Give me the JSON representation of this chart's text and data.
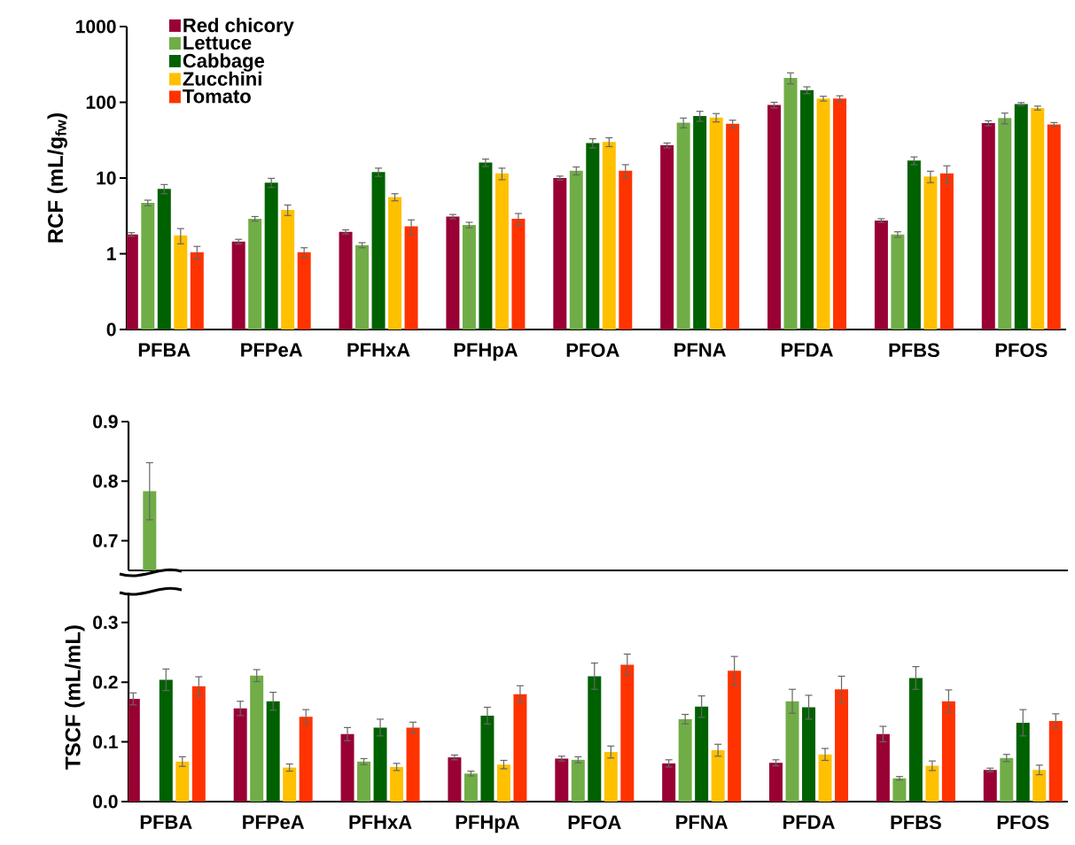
{
  "chart_data": [
    {
      "type": "bar",
      "categories": [
        "PFBA",
        "PFPeA",
        "PFHxA",
        "PFHpA",
        "PFOA",
        "PFNA",
        "PFDA",
        "PFBS",
        "PFOS"
      ],
      "ylabel": "RCF (mL/g$_{fw}$)",
      "log": true,
      "ylim": [
        0.1,
        1000
      ],
      "yticks": [
        {
          "value": 0.1,
          "label": "0"
        },
        1,
        10,
        100,
        1000
      ],
      "legend": "top left",
      "series": [
        {
          "name": "Red chicory",
          "color": "#990033",
          "values": [
            1.8,
            1.45,
            1.95,
            3.1,
            10,
            27,
            92,
            2.75,
            53
          ],
          "errors": [
            0.1,
            0.1,
            0.12,
            0.2,
            0.6,
            2,
            8,
            0.15,
            4
          ]
        },
        {
          "name": "Lettuce",
          "color": "#70ad47",
          "values": [
            4.7,
            2.9,
            1.3,
            2.4,
            12.5,
            54,
            210,
            1.8,
            62
          ],
          "errors": [
            0.4,
            0.2,
            0.1,
            0.2,
            1.5,
            8,
            35,
            0.15,
            10
          ]
        },
        {
          "name": "Cabbage",
          "color": "#006100",
          "values": [
            7.2,
            8.7,
            12,
            16,
            29,
            66,
            145,
            17,
            95
          ],
          "errors": [
            1.0,
            1.2,
            1.5,
            1.8,
            4,
            10,
            15,
            2,
            4
          ]
        },
        {
          "name": "Zucchini",
          "color": "#ffc000",
          "values": [
            1.75,
            3.8,
            5.6,
            11.5,
            30,
            63,
            112,
            10.5,
            84
          ],
          "errors": [
            0.4,
            0.6,
            0.6,
            2,
            4,
            8,
            8,
            1.8,
            5
          ]
        },
        {
          "name": "Tomato",
          "color": "#ff3300",
          "values": [
            1.05,
            1.05,
            2.3,
            2.9,
            12.5,
            52,
            112,
            11.5,
            51
          ],
          "errors": [
            0.2,
            0.15,
            0.5,
            0.5,
            2.5,
            6,
            10,
            3,
            3
          ]
        }
      ]
    },
    {
      "type": "bar",
      "categories": [
        null,
        null,
        null,
        null,
        null,
        null,
        null,
        null,
        null
      ],
      "ylim": [
        0.65,
        0.9
      ],
      "yticks": [
        0.7,
        0.8,
        0.9
      ],
      "tick_labels": "y",
      "series": [
        {
          "color": "#990033",
          "values": [
            null,
            null,
            null,
            null,
            null,
            null,
            null,
            null,
            null
          ]
        },
        {
          "color": "#70ad47",
          "values": [
            0.783,
            null,
            null,
            null,
            null,
            null,
            null,
            null,
            null
          ],
          "errors": [
            0.048,
            null,
            null,
            null,
            null,
            null,
            null,
            null,
            null
          ]
        },
        {
          "color": "#006100",
          "values": [
            null,
            null,
            null,
            null,
            null,
            null,
            null,
            null,
            null
          ]
        },
        {
          "color": "#ffc000",
          "values": [
            null,
            null,
            null,
            null,
            null,
            null,
            null,
            null,
            null
          ]
        },
        {
          "color": "#ff3300",
          "values": [
            null,
            null,
            null,
            null,
            null,
            null,
            null,
            null,
            null
          ]
        }
      ]
    },
    {
      "type": "bar",
      "categories": [
        "PFBA",
        "PFPeA",
        "PFHxA",
        "PFHpA",
        "PFOA",
        "PFNA",
        "PFDA",
        "PFBS",
        "PFOS"
      ],
      "ylabel": "TSCF (mL/mL)",
      "ylim": [
        0,
        0.35
      ],
      "yticks": [
        {
          "value": 0,
          "label": "0.0"
        },
        0.1,
        0.2,
        0.3
      ],
      "series": [
        {
          "color": "#990033",
          "values": [
            0.172,
            0.156,
            0.113,
            0.074,
            0.072,
            0.064,
            0.065,
            0.113,
            0.053
          ],
          "errors": [
            0.01,
            0.012,
            0.011,
            0.004,
            0.004,
            0.006,
            0.005,
            0.013,
            0.003
          ]
        },
        {
          "color": "#70ad47",
          "values": [
            null,
            0.211,
            0.067,
            0.047,
            0.07,
            0.138,
            0.168,
            0.039,
            0.073
          ],
          "errors": [
            null,
            0.01,
            0.005,
            0.004,
            0.005,
            0.008,
            0.02,
            0.003,
            0.006
          ]
        },
        {
          "color": "#006100",
          "values": [
            0.204,
            0.168,
            0.124,
            0.144,
            0.21,
            0.159,
            0.158,
            0.207,
            0.132
          ],
          "errors": [
            0.018,
            0.015,
            0.014,
            0.014,
            0.022,
            0.018,
            0.02,
            0.019,
            0.022
          ]
        },
        {
          "color": "#ffc000",
          "values": [
            0.067,
            0.057,
            0.058,
            0.062,
            0.083,
            0.086,
            0.079,
            0.06,
            0.053
          ],
          "errors": [
            0.008,
            0.006,
            0.006,
            0.007,
            0.01,
            0.01,
            0.01,
            0.008,
            0.008
          ]
        },
        {
          "color": "#ff3300",
          "values": [
            0.193,
            0.142,
            0.124,
            0.18,
            0.229,
            0.219,
            0.188,
            0.168,
            0.135
          ],
          "errors": [
            0.016,
            0.012,
            0.009,
            0.014,
            0.018,
            0.024,
            0.022,
            0.019,
            0.012
          ]
        }
      ]
    }
  ]
}
